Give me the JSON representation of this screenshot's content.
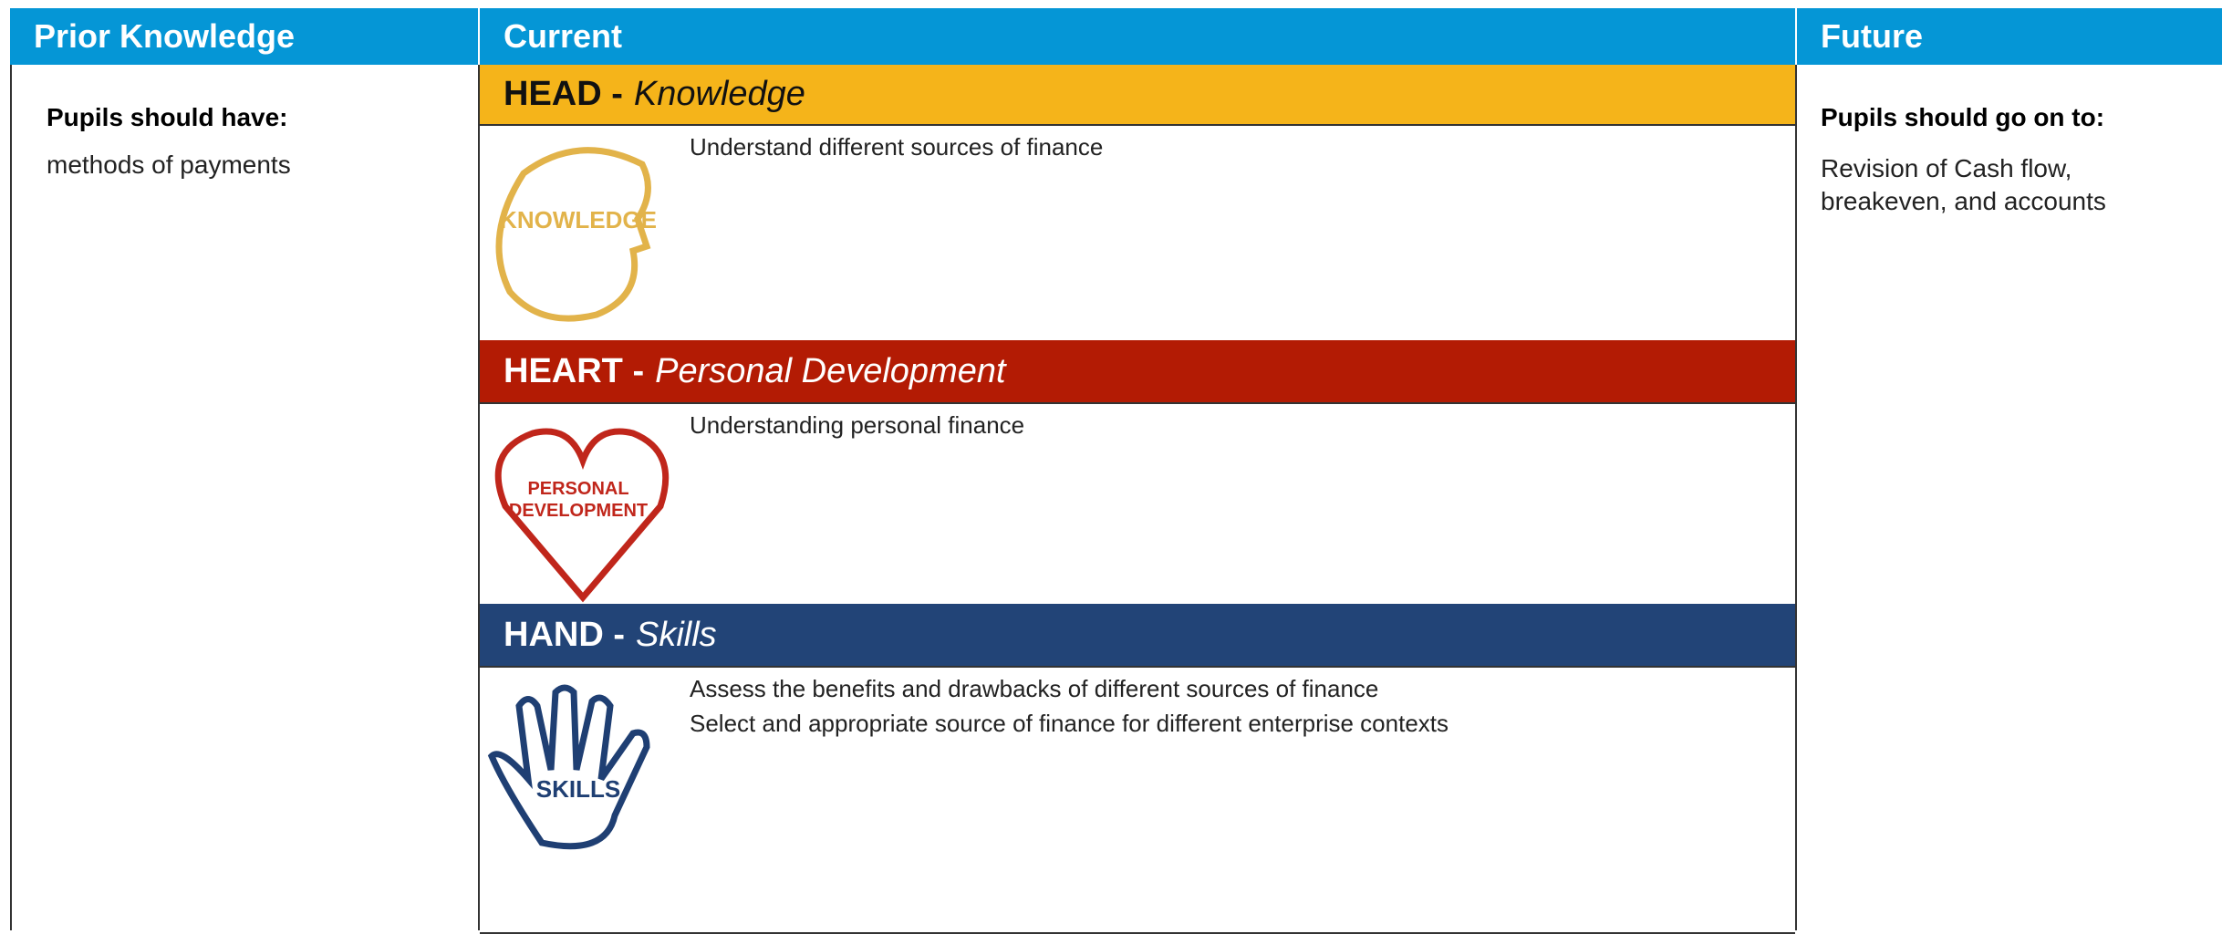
{
  "prior": {
    "title": "Prior Knowledge",
    "subtitle": "Pupils should have:",
    "items": [
      "methods of payments"
    ]
  },
  "current": {
    "title": "Current",
    "sections": [
      {
        "label": "HEAD -",
        "sublabel": "Knowledge",
        "icon_text": [
          "KNOWLEDGE"
        ],
        "items": [
          "Understand different sources of finance"
        ]
      },
      {
        "label": "HEART -",
        "sublabel": "Personal Development",
        "icon_text": [
          "PERSONAL",
          "DEVELOPMENT"
        ],
        "items": [
          "Understanding personal finance"
        ]
      },
      {
        "label": "HAND -",
        "sublabel": "Skills",
        "icon_text": [
          "SKILLS"
        ],
        "items": [
          "Assess the benefits and drawbacks of different sources of finance",
          "Select and appropriate source of finance for different enterprise contexts"
        ]
      }
    ]
  },
  "future": {
    "title": "Future",
    "subtitle": "Pupils should go on to:",
    "items": [
      "Revision of Cash flow, breakeven, and accounts"
    ]
  }
}
